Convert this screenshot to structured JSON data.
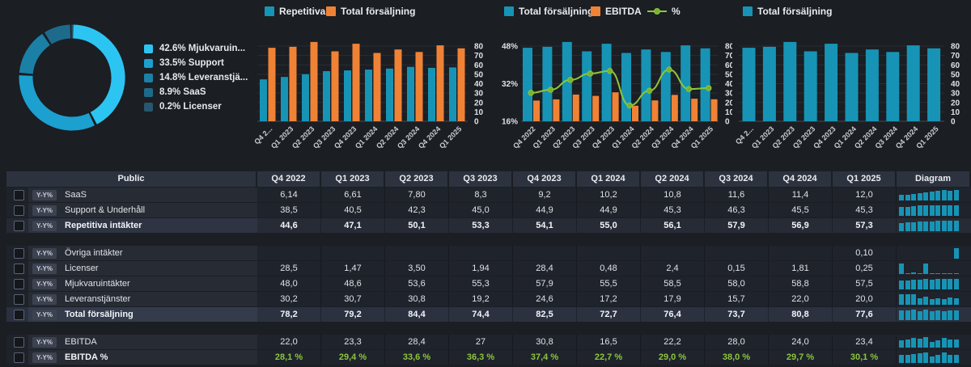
{
  "colors": {
    "teal": "#1794b5",
    "orange": "#f08236",
    "green": "#8cc63e",
    "grid": "#2a2e35",
    "axis_text": "#dde1e6"
  },
  "chart_data": [
    {
      "type": "pie",
      "title": "Revenue split donut",
      "values": [
        42.6,
        33.5,
        14.8,
        8.9,
        0.2
      ],
      "legend": [
        {
          "label": "42.6% Mjukvaruin...",
          "color": "#2cc5f2"
        },
        {
          "label": "33.5% Support",
          "color": "#1ca0cf"
        },
        {
          "label": "14.8% Leveranstjä...",
          "color": "#1b80a6"
        },
        {
          "label": "8.9% SaaS",
          "color": "#1e6a8b"
        },
        {
          "label": "0.2% Licenser",
          "color": "#27566e"
        }
      ]
    },
    {
      "type": "bar",
      "categories": [
        "Q4 2...",
        "Q1 2023",
        "Q2 2023",
        "Q3 2023",
        "Q4 2023",
        "Q1 2024",
        "Q2 2024",
        "Q3 2024",
        "Q4 2024",
        "Q1 2025"
      ],
      "legend": [
        {
          "label": "Repetitiva",
          "color": "#1794b5"
        },
        {
          "label": "Total försäljning",
          "color": "#f08236"
        }
      ],
      "series": [
        {
          "name": "Repetitiva",
          "color": "#1794b5",
          "values": [
            44.6,
            47.1,
            50.1,
            53.3,
            54.1,
            55.0,
            56.1,
            57.9,
            56.9,
            57.3
          ]
        },
        {
          "name": "Total försäljning",
          "color": "#f08236",
          "values": [
            78.2,
            79.2,
            84.4,
            74.4,
            82.5,
            72.7,
            76.4,
            73.7,
            80.8,
            77.6
          ]
        }
      ],
      "right_ticks": [
        0,
        10,
        20,
        30,
        40,
        50,
        60,
        70,
        80
      ]
    },
    {
      "type": "bar+line",
      "categories": [
        "Q4 2022",
        "Q1 2023",
        "Q2 2023",
        "Q3 2023",
        "Q4 2023",
        "Q1 2024",
        "Q2 2024",
        "Q3 2024",
        "Q4 2024",
        "Q1 2025"
      ],
      "legend": [
        {
          "label": "Total försäljning",
          "color": "#1794b5"
        },
        {
          "label": "EBITDA",
          "color": "#f08236"
        },
        {
          "label": "%",
          "color": "#8cc63e",
          "glyph": "line"
        }
      ],
      "series": [
        {
          "name": "Total försäljning",
          "color": "#1794b5",
          "values": [
            78.2,
            79.2,
            84.4,
            74.4,
            82.5,
            72.7,
            76.4,
            73.7,
            80.8,
            77.6
          ]
        },
        {
          "name": "EBITDA",
          "color": "#f08236",
          "values": [
            22.0,
            23.3,
            28.4,
            27,
            30.8,
            16.5,
            22.2,
            28.0,
            24.0,
            23.4
          ]
        }
      ],
      "line": {
        "name": "%",
        "color": "#8cc63e",
        "values": [
          28.1,
          29.4,
          33.6,
          36.3,
          37.4,
          22.7,
          29.0,
          38.0,
          29.7,
          30.1
        ],
        "min": 16,
        "max": 48
      },
      "left_ticks": [
        {
          "label": "16%",
          "v": 16
        },
        {
          "label": "32%",
          "v": 32
        },
        {
          "label": "48%",
          "v": 48
        }
      ],
      "right_ticks": [
        0,
        10,
        20,
        30,
        40,
        50,
        60,
        70,
        80
      ]
    },
    {
      "type": "bar",
      "categories": [
        "Q4 2...",
        "Q1 2023",
        "Q2 2023",
        "Q3 2023",
        "Q4 2023",
        "Q1 2024",
        "Q2 2024",
        "Q3 2024",
        "Q4 2024",
        "Q1 2025"
      ],
      "legend": [
        {
          "label": "Total försäljning",
          "color": "#1794b5"
        }
      ],
      "series": [
        {
          "name": "Total försäljning",
          "color": "#1794b5",
          "values": [
            78.2,
            79.2,
            84.4,
            74.4,
            82.5,
            72.7,
            76.4,
            73.7,
            80.8,
            77.6
          ]
        }
      ],
      "right_ticks": [
        0,
        10,
        20,
        30,
        40,
        50,
        60,
        70,
        80
      ]
    }
  ],
  "table": {
    "header_label": "Public",
    "diagram_label": "Diagram",
    "yy_label": "Y-Y%",
    "columns": [
      "Q4 2022",
      "Q1 2023",
      "Q2 2023",
      "Q3 2023",
      "Q4 2023",
      "Q1 2024",
      "Q2 2024",
      "Q3 2024",
      "Q4 2024",
      "Q1 2025"
    ],
    "rows": [
      {
        "label": "SaaS",
        "values": [
          "6,14",
          "6,61",
          "7,80",
          "8,3",
          "9,2",
          "10,2",
          "10,8",
          "11,6",
          "11,4",
          "12,0"
        ]
      },
      {
        "label": "Support & Underhåll",
        "values": [
          "38,5",
          "40,5",
          "42,3",
          "45,0",
          "44,9",
          "44,9",
          "45,3",
          "46,3",
          "45,5",
          "45,3"
        ]
      },
      {
        "label": "Repetitiva intäkter",
        "bold": true,
        "values": [
          "44,6",
          "47,1",
          "50,1",
          "53,3",
          "54,1",
          "55,0",
          "56,1",
          "57,9",
          "56,9",
          "57,3"
        ]
      },
      {
        "type": "gap"
      },
      {
        "label": "Övriga intäkter",
        "values": [
          "",
          "",
          "",
          "",
          "",
          "",
          "",
          "",
          "",
          "0,10"
        ]
      },
      {
        "label": "Licenser",
        "values": [
          "28,5",
          "1,47",
          "3,50",
          "1,94",
          "28,4",
          "0,48",
          "2,4",
          "0,15",
          "1,81",
          "0,25"
        ]
      },
      {
        "label": "Mjukvaruintäkter",
        "values": [
          "48,0",
          "48,6",
          "53,6",
          "55,3",
          "57,9",
          "55,5",
          "58,5",
          "58,0",
          "58,8",
          "57,5"
        ]
      },
      {
        "label": "Leveranstjänster",
        "values": [
          "30,2",
          "30,7",
          "30,8",
          "19,2",
          "24,6",
          "17,2",
          "17,9",
          "15,7",
          "22,0",
          "20,0"
        ]
      },
      {
        "label": "Total försäljning",
        "bold": true,
        "highlight": true,
        "values": [
          "78,2",
          "79,2",
          "84,4",
          "74,4",
          "82,5",
          "72,7",
          "76,4",
          "73,7",
          "80,8",
          "77,6"
        ]
      },
      {
        "type": "gap"
      },
      {
        "label": "EBITDA",
        "values": [
          "22,0",
          "23,3",
          "28,4",
          "27",
          "30,8",
          "16,5",
          "22,2",
          "28,0",
          "24,0",
          "23,4"
        ]
      },
      {
        "label": "EBITDA %",
        "green": true,
        "values": [
          "28,1 %",
          "29,4 %",
          "33,6 %",
          "36,3 %",
          "37,4 %",
          "22,7 %",
          "29,0 %",
          "38,0 %",
          "29,7 %",
          "30,1 %"
        ]
      }
    ]
  }
}
